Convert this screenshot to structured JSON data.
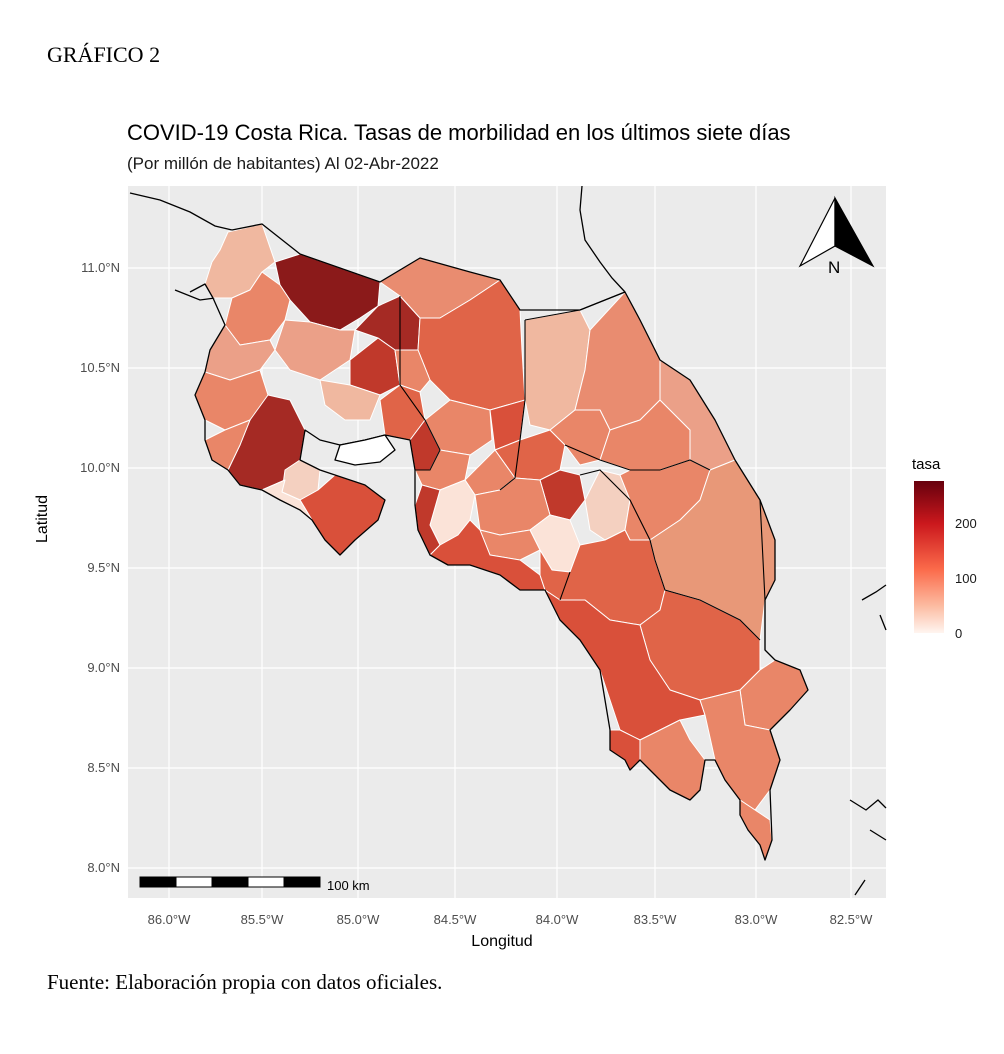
{
  "figure_label": "GRÁFICO 2",
  "source": "Fuente: Elaboración propia con datos oficiales.",
  "chart_data": {
    "type": "choropleth map",
    "title": "COVID-19 Costa Rica. Tasas de morbilidad en los últimos siete días",
    "subtitle": "(Por millón de habitantes) Al 02-Abr-2022",
    "xlabel": "Longitud",
    "ylabel": "Latitud",
    "x_ticks": [
      "86.0°W",
      "85.5°W",
      "85.0°W",
      "84.5°W",
      "84.0°W",
      "83.5°W",
      "83.0°W",
      "82.5°W"
    ],
    "y_ticks": [
      "11.0°N",
      "10.5°N",
      "10.0°N",
      "9.5°N",
      "9.0°N",
      "8.5°N",
      "8.0°N"
    ],
    "xlim": [
      -86.23,
      -82.37
    ],
    "ylim": [
      7.87,
      11.37
    ],
    "legend": {
      "title": "tasa",
      "ticks": [
        "200",
        "100",
        "0"
      ],
      "range": [
        0,
        280
      ],
      "placement": "right",
      "colors": [
        "#fff5f0",
        "#fcbba1",
        "#fb6a4a",
        "#cb181d",
        "#67000d"
      ]
    },
    "scale_bar_label": "100 km",
    "north_arrow": "N",
    "grid": true,
    "panel_background": "#ebebeb"
  }
}
